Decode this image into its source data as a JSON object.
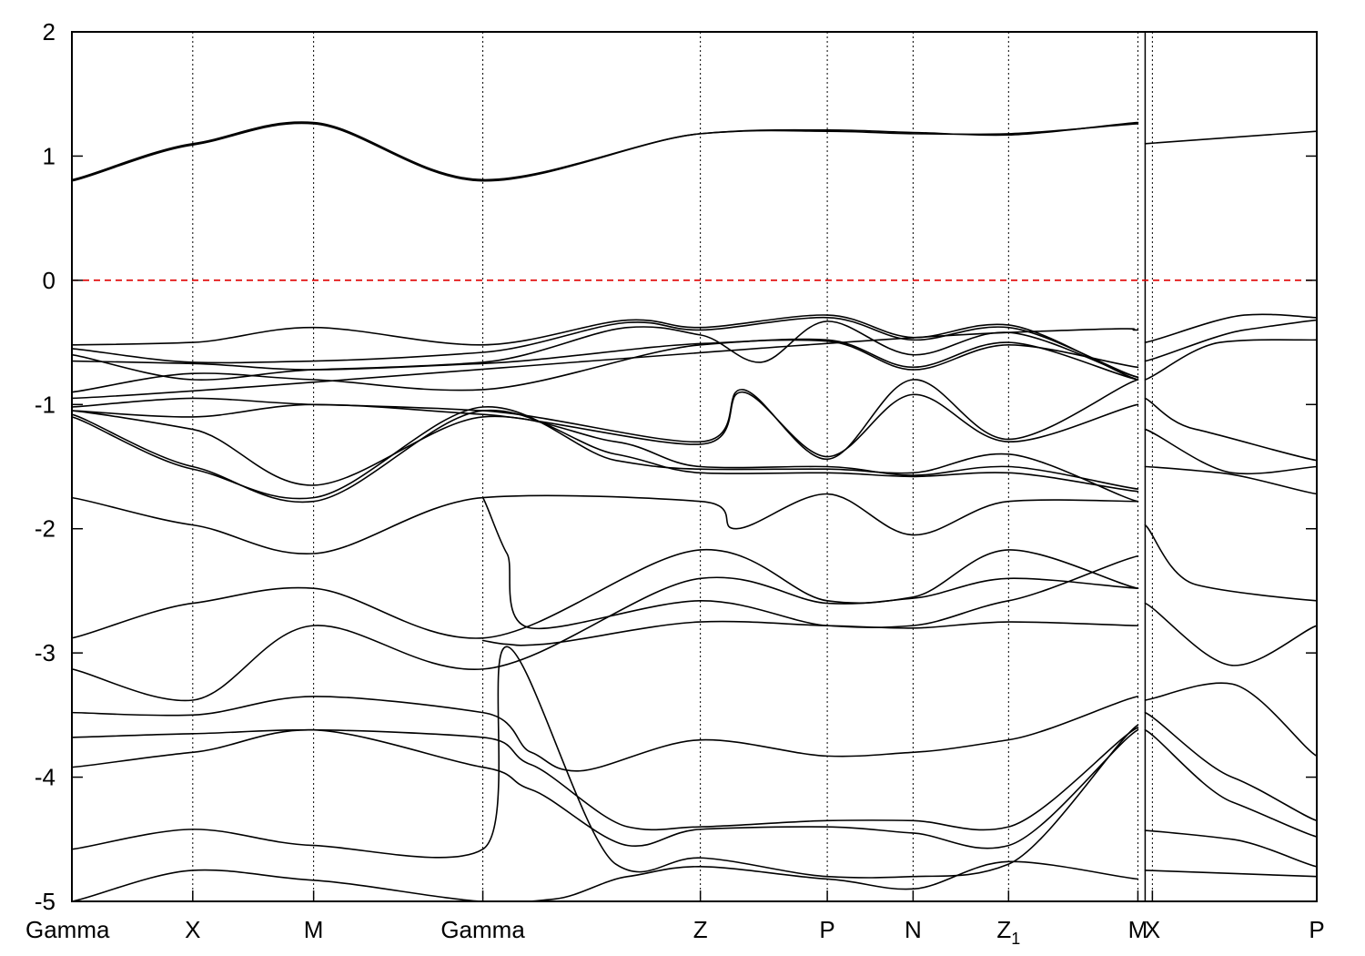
{
  "chart_data": {
    "type": "line",
    "title": "",
    "xlabel": "",
    "ylabel": "",
    "ylim": [
      -5,
      2
    ],
    "y_ticks": [
      2,
      1,
      0,
      -1,
      -2,
      -3,
      -4,
      -5
    ],
    "fermi_level": 0,
    "fermi_color": "#e00000",
    "line_color": "#000000",
    "grid": "vertical dotted lines at high-symmetry points",
    "xlim": [
      0,
      10.3
    ],
    "high_symmetry_points": [
      {
        "label": "Gamma",
        "x": 0.0
      },
      {
        "label": "X",
        "x": 1.0
      },
      {
        "label": "M",
        "x": 2.0
      },
      {
        "label": "Gamma",
        "x": 3.4
      },
      {
        "label": "Z",
        "x": 5.2
      },
      {
        "label": "P",
        "x": 6.25
      },
      {
        "label": "N",
        "x": 6.96
      },
      {
        "label": "Z1",
        "x": 7.75
      },
      {
        "label": "M",
        "x": 8.82
      },
      {
        "label": "X",
        "x": 8.94
      },
      {
        "label": "P",
        "x": 10.3
      }
    ],
    "discontinuity_at": 8.88,
    "series": [
      {
        "x": [
          0,
          1,
          2,
          3.4,
          5.2,
          6.25,
          6.96,
          7.75,
          8.82
        ],
        "y": [
          0.8,
          1.09,
          1.26,
          0.8,
          1.18,
          1.2,
          1.18,
          1.18,
          1.26
        ]
      },
      {
        "x": [
          0,
          1,
          2,
          3.4,
          5.2,
          6.25,
          6.96,
          7.75,
          8.82
        ],
        "y": [
          0.81,
          1.1,
          1.27,
          0.81,
          1.18,
          1.21,
          1.19,
          1.17,
          1.27
        ]
      },
      {
        "x": [
          8.88,
          10.3
        ],
        "y": [
          1.1,
          1.2
        ]
      },
      {
        "x": [
          0,
          1,
          2,
          3.4,
          4.6,
          5.2,
          6.25,
          6.96,
          7.75,
          8.82
        ],
        "y": [
          -0.52,
          -0.5,
          -0.38,
          -0.52,
          -0.32,
          -0.38,
          -0.28,
          -0.46,
          -0.36,
          -0.8
        ]
      },
      {
        "x": [
          0,
          1,
          2,
          3.4,
          4.6,
          5.2,
          6.25,
          6.96,
          7.75,
          8.82
        ],
        "y": [
          -0.55,
          -0.66,
          -0.65,
          -0.58,
          -0.34,
          -0.4,
          -0.3,
          -0.48,
          -0.38,
          -0.78
        ]
      },
      {
        "x": [
          0,
          1,
          2,
          3.4,
          4.6,
          5.2,
          5.7,
          6.25,
          6.96,
          7.75,
          8.82
        ],
        "y": [
          -0.6,
          -0.8,
          -0.72,
          -0.66,
          -0.38,
          -0.44,
          -0.66,
          -0.33,
          -0.6,
          -0.42,
          -0.78
        ]
      },
      {
        "x": [
          0,
          1,
          2,
          3.4,
          5.2,
          6.25,
          6.96,
          7.75,
          8.82
        ],
        "y": [
          -0.65,
          -0.67,
          -0.72,
          -0.67,
          -0.51,
          -0.48,
          -0.7,
          -0.5,
          -0.8
        ]
      },
      {
        "x": [
          0,
          1,
          2,
          3.4,
          5.2,
          6.25,
          6.96,
          7.75,
          8.82
        ],
        "y": [
          -0.9,
          -0.75,
          -0.8,
          -0.88,
          -0.52,
          -0.49,
          -0.72,
          -0.52,
          -0.7
        ]
      },
      {
        "x": [
          0,
          7.75,
          8.82
        ],
        "y": [
          -0.95,
          -0.42,
          -0.4
        ]
      },
      {
        "x": [
          8.88,
          9.7,
          10.3
        ],
        "y": [
          -0.5,
          -0.28,
          -0.3
        ]
      },
      {
        "x": [
          8.88,
          9.7,
          10.3
        ],
        "y": [
          -0.65,
          -0.4,
          -0.32
        ]
      },
      {
        "x": [
          8.88,
          9.5,
          10.3
        ],
        "y": [
          -0.8,
          -0.5,
          -0.48
        ]
      },
      {
        "x": [
          0,
          1,
          2,
          3.4,
          5.2,
          5.55,
          6.25,
          6.96,
          7.75,
          8.82
        ],
        "y": [
          -1.02,
          -0.95,
          -1.0,
          -1.05,
          -1.3,
          -0.88,
          -1.44,
          -0.8,
          -1.28,
          -0.8
        ]
      },
      {
        "x": [
          0,
          1,
          2,
          3.4,
          5.2,
          5.55,
          6.25,
          6.96,
          7.75,
          8.82
        ],
        "y": [
          -1.05,
          -1.1,
          -1.0,
          -1.08,
          -1.32,
          -0.9,
          -1.42,
          -0.92,
          -1.3,
          -1.0
        ]
      },
      {
        "x": [
          0,
          1,
          2,
          3.4,
          4.5,
          5.2,
          6.25,
          6.96,
          7.75,
          8.82
        ],
        "y": [
          -1.05,
          -1.2,
          -1.65,
          -1.1,
          -1.3,
          -1.5,
          -1.5,
          -1.57,
          -1.5,
          -1.68
        ]
      },
      {
        "x": [
          0,
          1,
          2,
          3.4,
          4.5,
          5.2,
          6.25,
          6.96,
          7.75,
          8.82
        ],
        "y": [
          -1.08,
          -1.5,
          -1.78,
          -1.05,
          -1.4,
          -1.55,
          -1.55,
          -1.58,
          -1.55,
          -1.7
        ]
      },
      {
        "x": [
          0,
          1,
          2,
          3.4,
          4.5,
          5.2,
          6.25,
          6.96,
          7.75,
          8.82
        ],
        "y": [
          -1.1,
          -1.52,
          -1.75,
          -1.02,
          -1.45,
          -1.52,
          -1.52,
          -1.55,
          -1.4,
          -1.78
        ]
      },
      {
        "x": [
          0,
          1,
          2,
          3.4,
          5.2,
          5.5,
          6.25,
          6.96,
          7.75,
          8.82
        ],
        "y": [
          -1.75,
          -1.97,
          -2.2,
          -1.75,
          -1.78,
          -2.0,
          -1.72,
          -2.05,
          -1.78,
          -1.78
        ]
      },
      {
        "x": [
          8.88,
          9.3,
          10.3
        ],
        "y": [
          -0.95,
          -1.2,
          -1.45
        ]
      },
      {
        "x": [
          8.88,
          9.6,
          10.3
        ],
        "y": [
          -1.2,
          -1.55,
          -1.5
        ]
      },
      {
        "x": [
          8.88,
          9.5,
          10.3
        ],
        "y": [
          -1.5,
          -1.55,
          -1.72
        ]
      },
      {
        "x": [
          8.88,
          9.3,
          10.3
        ],
        "y": [
          -1.97,
          -2.45,
          -2.58
        ]
      },
      {
        "x": [
          0,
          1,
          2,
          3.4,
          5.2,
          6.25,
          6.96,
          7.75,
          8.82
        ],
        "y": [
          -2.88,
          -2.6,
          -2.48,
          -2.88,
          -2.17,
          -2.58,
          -2.55,
          -2.17,
          -2.48
        ]
      },
      {
        "x": [
          0,
          1,
          2,
          3.4,
          5.2,
          6.25,
          6.96,
          7.75,
          8.82
        ],
        "y": [
          -3.13,
          -3.38,
          -2.78,
          -3.13,
          -2.4,
          -2.6,
          -2.56,
          -2.4,
          -2.48
        ]
      },
      {
        "x": [
          3.4,
          3.6,
          3.8,
          5.2,
          6.25,
          6.96,
          7.75,
          8.82
        ],
        "y": [
          -1.75,
          -2.2,
          -2.8,
          -2.58,
          -2.78,
          -2.78,
          -2.58,
          -2.22
        ]
      },
      {
        "x": [
          3.4,
          3.6,
          3.9,
          5.2,
          6.25,
          6.96,
          7.75,
          8.82
        ],
        "y": [
          -2.9,
          -2.93,
          -2.93,
          -2.75,
          -2.78,
          -2.8,
          -2.75,
          -2.78
        ]
      },
      {
        "x": [
          8.88,
          9.6,
          10.3
        ],
        "y": [
          -2.6,
          -3.1,
          -2.78
        ]
      },
      {
        "x": [
          8.88,
          9.6,
          10.3
        ],
        "y": [
          -3.38,
          -3.25,
          -3.83
        ]
      },
      {
        "x": [
          0,
          1,
          2,
          3.4,
          3.8,
          4.2,
          5.2,
          6.25,
          6.96,
          7.75,
          8.82
        ],
        "y": [
          -3.48,
          -3.5,
          -3.35,
          -3.48,
          -3.8,
          -3.95,
          -3.7,
          -3.83,
          -3.8,
          -3.7,
          -3.35
        ]
      },
      {
        "x": [
          0,
          1,
          2,
          3.4,
          3.8,
          4.6,
          5.2,
          6.25,
          6.96,
          7.75,
          8.82
        ],
        "y": [
          -3.68,
          -3.65,
          -3.62,
          -3.68,
          -3.9,
          -4.4,
          -4.4,
          -4.35,
          -4.35,
          -4.4,
          -3.6
        ]
      },
      {
        "x": [
          0,
          1,
          2,
          3.4,
          3.8,
          4.6,
          5.2,
          6.25,
          6.96,
          7.75,
          8.82
        ],
        "y": [
          -3.92,
          -3.8,
          -3.62,
          -3.92,
          -4.1,
          -4.55,
          -4.42,
          -4.4,
          -4.45,
          -4.55,
          -3.62
        ]
      },
      {
        "x": [
          0,
          1,
          2,
          3.4,
          3.6,
          4.5,
          5.2,
          6.25,
          6.96,
          7.75,
          8.82
        ],
        "y": [
          -4.58,
          -4.42,
          -4.55,
          -4.58,
          -2.95,
          -4.7,
          -4.65,
          -4.8,
          -4.8,
          -4.7,
          -3.58
        ]
      },
      {
        "x": [
          0,
          1,
          2,
          3.4,
          4.0,
          4.6,
          5.2,
          6.25,
          6.96,
          7.75,
          8.82
        ],
        "y": [
          -5.0,
          -4.75,
          -4.83,
          -5.0,
          -4.98,
          -4.8,
          -4.72,
          -4.82,
          -4.9,
          -4.68,
          -4.82
        ]
      },
      {
        "x": [
          8.88,
          9.6,
          10.3
        ],
        "y": [
          -3.48,
          -4.0,
          -4.35
        ]
      },
      {
        "x": [
          8.88,
          9.6,
          10.3
        ],
        "y": [
          -3.62,
          -4.2,
          -4.48
        ]
      },
      {
        "x": [
          8.88,
          9.6,
          10.3
        ],
        "y": [
          -4.43,
          -4.5,
          -4.72
        ]
      },
      {
        "x": [
          8.88,
          10.3
        ],
        "y": [
          -4.75,
          -4.8
        ]
      }
    ]
  }
}
